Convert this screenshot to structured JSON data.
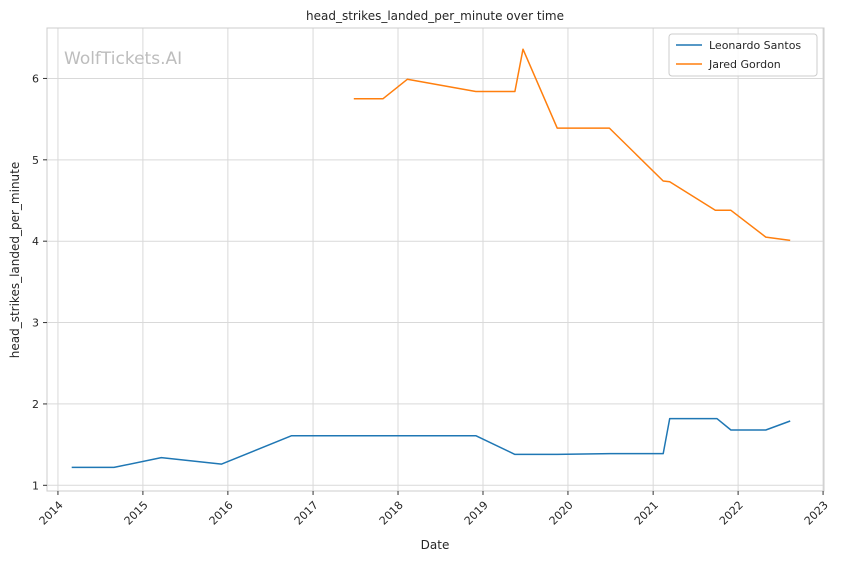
{
  "chart_data": {
    "type": "line",
    "title": "head_strikes_landed_per_minute over time",
    "xlabel": "Date",
    "ylabel": "head_strikes_landed_per_minute",
    "watermark": "WolfTickets.AI",
    "xlim": [
      "2013-11-15",
      "2023-01-05"
    ],
    "ylim": [
      0.93,
      6.62
    ],
    "x_ticks": [
      "2014",
      "2015",
      "2016",
      "2017",
      "2018",
      "2019",
      "2020",
      "2021",
      "2022",
      "2023"
    ],
    "y_ticks": [
      1,
      2,
      3,
      4,
      5,
      6
    ],
    "grid": true,
    "legend_position": "top-right",
    "series": [
      {
        "name": "Leonardo Santos",
        "color": "#1f77b4",
        "points": [
          [
            "2014-03-01",
            1.22
          ],
          [
            "2014-08-30",
            1.22
          ],
          [
            "2015-03-21",
            1.34
          ],
          [
            "2015-12-05",
            1.26
          ],
          [
            "2016-10-01",
            1.61
          ],
          [
            "2018-12-01",
            1.61
          ],
          [
            "2019-05-18",
            1.38
          ],
          [
            "2019-11-16",
            1.38
          ],
          [
            "2020-07-01",
            1.39
          ],
          [
            "2021-02-13",
            1.39
          ],
          [
            "2021-03-13",
            1.82
          ],
          [
            "2021-10-02",
            1.82
          ],
          [
            "2021-12-01",
            1.68
          ],
          [
            "2022-04-30",
            1.68
          ],
          [
            "2022-08-13",
            1.79
          ]
        ]
      },
      {
        "name": "Jared Gordon",
        "color": "#ff7f0e",
        "points": [
          [
            "2017-06-25",
            5.75
          ],
          [
            "2017-10-28",
            5.75
          ],
          [
            "2018-02-10",
            5.99
          ],
          [
            "2018-12-01",
            5.84
          ],
          [
            "2019-05-18",
            5.84
          ],
          [
            "2019-06-22",
            6.36
          ],
          [
            "2019-11-16",
            5.39
          ],
          [
            "2020-06-27",
            5.39
          ],
          [
            "2021-02-13",
            4.74
          ],
          [
            "2021-03-13",
            4.73
          ],
          [
            "2021-09-25",
            4.38
          ],
          [
            "2021-12-01",
            4.38
          ],
          [
            "2022-04-30",
            4.05
          ],
          [
            "2022-08-13",
            4.01
          ]
        ]
      }
    ]
  }
}
